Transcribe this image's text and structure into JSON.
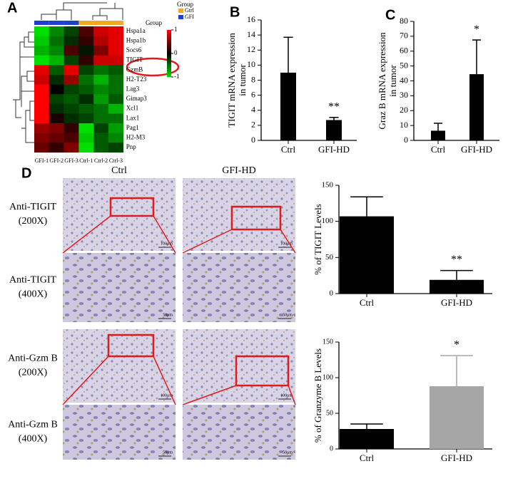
{
  "chart_data": [
    {
      "type": "heatmap",
      "panel_label": "A",
      "rows": [
        "Hspa1a",
        "Hspa1b",
        "Socs6",
        "TIGIT",
        "GzmB",
        "H2-T23",
        "Lag3",
        "Gimap3",
        "Xcl1",
        "Lax1",
        "Pag1",
        "H2-M3",
        "Pnp"
      ],
      "columns": [
        "GFI-1",
        "GFI-2",
        "GFI-3",
        "Ctrl-1",
        "Ctrl-2",
        "Ctrl-3"
      ],
      "values": [
        [
          -1,
          -0.6,
          -0.3,
          0.3,
          0.8,
          0.9
        ],
        [
          -0.9,
          -0.5,
          -0.2,
          0.2,
          0.7,
          0.9
        ],
        [
          -0.8,
          -0.6,
          0.3,
          -0.1,
          0.5,
          0.9
        ],
        [
          -1,
          -0.8,
          -0.3,
          0.2,
          0.8,
          0.8
        ],
        [
          0.9,
          -0.4,
          0.9,
          -0.3,
          -0.5,
          -0.4
        ],
        [
          0.8,
          -0.2,
          0.6,
          -0.5,
          -0.8,
          -0.5
        ],
        [
          1,
          0,
          -0.3,
          -0.4,
          -0.6,
          -0.5
        ],
        [
          1,
          -0.3,
          -0.4,
          -0.2,
          -0.7,
          -0.4
        ],
        [
          1,
          -0.2,
          -0.3,
          -0.4,
          -0.5,
          -0.8
        ],
        [
          1,
          0.1,
          -0.2,
          -0.3,
          -0.5,
          -0.5
        ],
        [
          0.6,
          0.5,
          0.2,
          -1,
          -0.3,
          -0.7
        ],
        [
          0.5,
          0.4,
          0.3,
          -0.9,
          -0.4,
          -0.6
        ],
        [
          0.4,
          0.2,
          0.5,
          -1,
          -0.4,
          -0.3
        ]
      ],
      "clim": [
        -1,
        1
      ],
      "cticks": [
        1,
        0,
        -1
      ],
      "colormap": [
        "#00e000",
        "#000000",
        "#ff0000"
      ],
      "groups": {
        "title": "Group",
        "names": [
          "Gtrl",
          "GFI"
        ],
        "colors": [
          "#f5a623",
          "#1f3fd0"
        ],
        "assignment": [
          "GFI",
          "GFI",
          "GFI",
          "Gtrl",
          "Gtrl",
          "Gtrl"
        ]
      }
    },
    {
      "type": "bar",
      "panel_label": "B",
      "y_label": [
        "TIGIT mRNA expression",
        "in tumor"
      ],
      "categories": [
        "Ctrl",
        "GFI-HD"
      ],
      "values": [
        9,
        2.7
      ],
      "errors": [
        4.7,
        0.35
      ],
      "colors": [
        "#000000",
        "#000000"
      ],
      "ylim": [
        0,
        16
      ],
      "yticks": [
        0,
        2,
        4,
        6,
        8,
        10,
        12,
        14,
        16
      ],
      "annotations": [
        {
          "category": "GFI-HD",
          "text": "**"
        }
      ]
    },
    {
      "type": "bar",
      "panel_label": "C",
      "y_label": [
        "Graz B mRNA expression",
        "in tumor"
      ],
      "categories": [
        "Ctrl",
        "GFI-HD"
      ],
      "values": [
        6.5,
        44.5
      ],
      "errors": [
        5,
        23
      ],
      "colors": [
        "#000000",
        "#000000"
      ],
      "ylim": [
        0,
        80
      ],
      "yticks": [
        0,
        10,
        20,
        30,
        40,
        50,
        60,
        70,
        80
      ],
      "annotations": [
        {
          "category": "GFI-HD",
          "text": "*"
        }
      ]
    },
    {
      "type": "bar",
      "y_label": [
        "% of TIGIT Levels"
      ],
      "categories": [
        "Ctrl",
        "GFI-HD"
      ],
      "values": [
        107,
        19
      ],
      "errors": [
        27,
        13
      ],
      "colors": [
        "#000000",
        "#000000"
      ],
      "ylim": [
        0,
        150
      ],
      "yticks": [
        0,
        50,
        100,
        150
      ],
      "annotations": [
        {
          "category": "GFI-HD",
          "text": "**"
        }
      ]
    },
    {
      "type": "bar",
      "y_label": [
        "% of Granzyme B Levels"
      ],
      "categories": [
        "Ctrl",
        "GFI-HD"
      ],
      "values": [
        28,
        88
      ],
      "errors": [
        7,
        43
      ],
      "colors": [
        "#000000",
        "#a6a6a6"
      ],
      "ylim": [
        0,
        150
      ],
      "yticks": [
        0,
        50,
        100,
        150
      ],
      "annotations": [
        {
          "category": "GFI-HD",
          "text": "*"
        }
      ]
    }
  ],
  "micrographs": {
    "panel_label": "D",
    "columns": [
      "Ctrl",
      "GFI-HD"
    ],
    "rows": [
      {
        "label": [
          "Anti-TIGIT",
          "(200X)"
        ],
        "scale_bar": "100μm"
      },
      {
        "label": [
          "Anti-TIGIT",
          "(400X)"
        ],
        "scale_bar": "50μm"
      },
      {
        "label": [
          "Anti-Gzm B",
          "(200X)"
        ],
        "scale_bar": "100μm"
      },
      {
        "label": [
          "Anti-Gzm B",
          "(400X)"
        ],
        "scale_bar": "50μm"
      }
    ]
  }
}
